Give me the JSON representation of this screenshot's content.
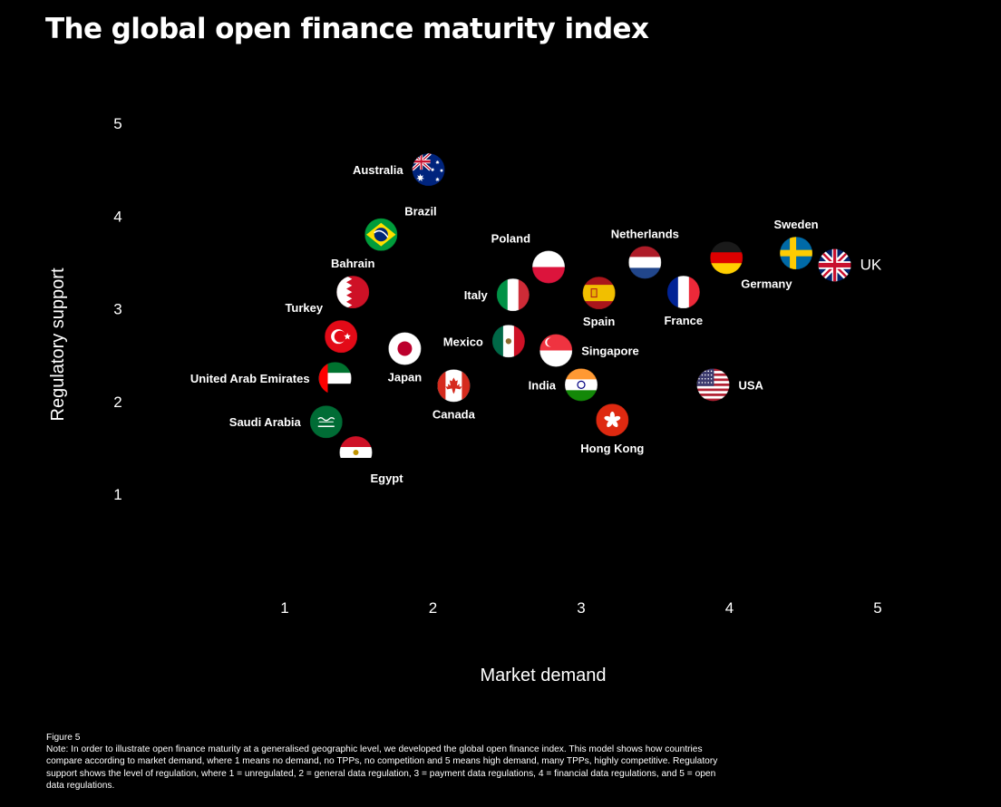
{
  "title": "The global open finance maturity index",
  "chart_data": {
    "type": "scatter",
    "title": "The global open finance maturity index",
    "xlabel": "Market demand",
    "ylabel": "Regulatory support",
    "xlim": [
      1,
      5
    ],
    "ylim": [
      1,
      5
    ],
    "xticks": [
      "1",
      "2",
      "3",
      "4",
      "5"
    ],
    "yticks": [
      "1",
      "2",
      "3",
      "4",
      "5"
    ],
    "grid": false,
    "points": [
      {
        "name": "Australia",
        "x": 1.97,
        "y": 4.5,
        "flag": "australia-flag",
        "label_pos": "left"
      },
      {
        "name": "Brazil",
        "x": 1.65,
        "y": 3.8,
        "flag": "brazil-flag",
        "label_pos": "top-right"
      },
      {
        "name": "Bahrain",
        "x": 1.46,
        "y": 3.18,
        "flag": "bahrain-flag",
        "label_pos": "top"
      },
      {
        "name": "Turkey",
        "x": 1.38,
        "y": 2.7,
        "flag": "turkey-flag",
        "label_pos": "top-left"
      },
      {
        "name": "Japan",
        "x": 1.81,
        "y": 2.57,
        "flag": "japan-flag",
        "label_pos": "bottom"
      },
      {
        "name": "United Arab Emirates",
        "x": 1.34,
        "y": 2.25,
        "flag": "uae-flag",
        "label_pos": "left"
      },
      {
        "name": "Saudi Arabia",
        "x": 1.28,
        "y": 1.78,
        "flag": "saudi-arabia-flag",
        "label_pos": "left"
      },
      {
        "name": "Egypt",
        "x": 1.48,
        "y": 1.45,
        "flag": "egypt-flag",
        "label_pos": "bottom-right"
      },
      {
        "name": "Canada",
        "x": 2.14,
        "y": 2.17,
        "flag": "canada-flag",
        "label_pos": "bottom"
      },
      {
        "name": "Mexico",
        "x": 2.51,
        "y": 2.65,
        "flag": "mexico-flag",
        "label_pos": "left"
      },
      {
        "name": "Italy",
        "x": 2.54,
        "y": 3.15,
        "flag": "italy-flag",
        "label_pos": "left"
      },
      {
        "name": "Poland",
        "x": 2.78,
        "y": 3.45,
        "flag": "poland-flag",
        "label_pos": "top-left"
      },
      {
        "name": "Singapore",
        "x": 2.83,
        "y": 2.55,
        "flag": "singapore-flag",
        "label_pos": "right"
      },
      {
        "name": "India",
        "x": 3.0,
        "y": 2.18,
        "flag": "india-flag",
        "label_pos": "left"
      },
      {
        "name": "Spain",
        "x": 3.12,
        "y": 3.17,
        "flag": "spain-flag",
        "label_pos": "bottom"
      },
      {
        "name": "Hong Kong",
        "x": 3.21,
        "y": 1.8,
        "flag": "hong-kong-flag",
        "label_pos": "bottom"
      },
      {
        "name": "Netherlands",
        "x": 3.43,
        "y": 3.5,
        "flag": "netherlands-flag",
        "label_pos": "top"
      },
      {
        "name": "France",
        "x": 3.69,
        "y": 3.18,
        "flag": "france-flag",
        "label_pos": "bottom"
      },
      {
        "name": "USA",
        "x": 3.89,
        "y": 2.18,
        "flag": "usa-flag",
        "label_pos": "right"
      },
      {
        "name": "Germany",
        "x": 3.98,
        "y": 3.55,
        "flag": "germany-flag",
        "label_pos": "bottom-right"
      },
      {
        "name": "Sweden",
        "x": 4.45,
        "y": 3.6,
        "flag": "sweden-flag",
        "label_pos": "top"
      },
      {
        "name": "UK",
        "x": 4.71,
        "y": 3.47,
        "flag": "uk-flag",
        "label_pos": "right"
      }
    ]
  },
  "note": {
    "figure_label": "Figure 5",
    "text": "Note: In order to illustrate open finance maturity at a generalised geographic level, we developed the global open finance index. This model shows how countries compare according to market demand, where 1 means no demand, no TPPs, no competition and 5 means high demand, many TPPs, highly competitive. Regulatory support shows the level of regulation, where 1 = unregulated, 2 = general data regulation, 3 = payment data regulations, 4 = financial data regulations, and 5 = open data regulations."
  },
  "colors": {
    "background": "#000000",
    "text": "#ffffff"
  }
}
